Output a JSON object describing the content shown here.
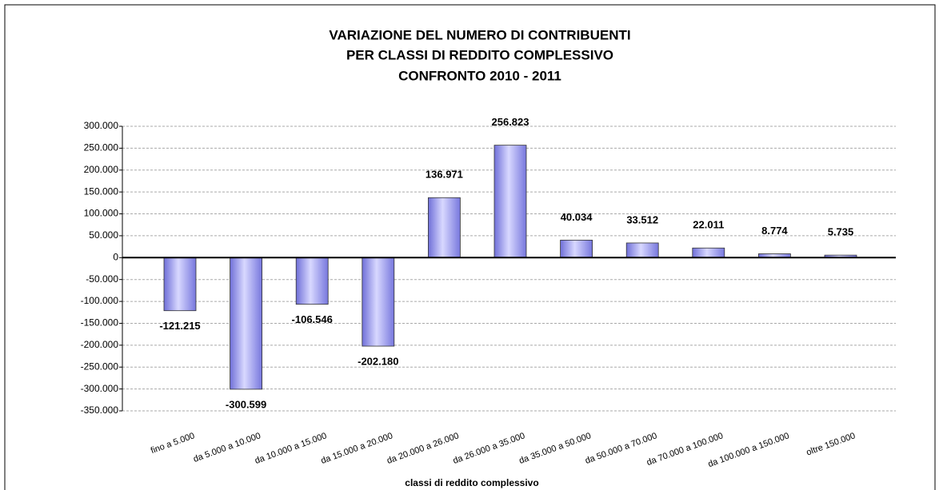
{
  "chart_data": {
    "type": "bar",
    "title": [
      "VARIAZIONE DEL NUMERO DI CONTRIBUENTI",
      "PER CLASSI DI REDDITO COMPLESSIVO",
      "CONFRONTO 2010 - 2011"
    ],
    "x_label": "classi di reddito complessivo",
    "categories": [
      "fino a 5.000",
      "da 5.000 a 10.000",
      "da 10.000 a 15.000",
      "da 15.000 a 20.000",
      "da 20.000 a 26.000",
      "da 26.000 a 35.000",
      "da 35.000 a 50.000",
      "da 50.000 a 70.000",
      "da 70.000 a 100.000",
      "da 100.000 a 150.000",
      "oltre 150.000"
    ],
    "values": [
      -121215,
      -300599,
      -106546,
      -202180,
      136971,
      256823,
      40034,
      33512,
      22011,
      8774,
      5735
    ],
    "value_labels": [
      "-121.215",
      "-300.599",
      "-106.546",
      "-202.180",
      "136.971",
      "256.823",
      "40.034",
      "33.512",
      "22.011",
      "8.774",
      "5.735"
    ],
    "color": "#9999ff",
    "ylim": [
      -350000,
      300000
    ],
    "yticks": [
      {
        "value": -350000,
        "label": "-350.000"
      },
      {
        "value": -300000,
        "label": "-300.000"
      },
      {
        "value": -250000,
        "label": "-250.000"
      },
      {
        "value": -200000,
        "label": "-200.000"
      },
      {
        "value": -150000,
        "label": "-150.000"
      },
      {
        "value": -100000,
        "label": "-100.000"
      },
      {
        "value": -50000,
        "label": "-50.000"
      },
      0,
      {
        "value": 50000,
        "label": "50.000"
      },
      {
        "value": 100000,
        "label": "100.000"
      },
      {
        "value": 150000,
        "label": "150.000"
      },
      {
        "value": 200000,
        "label": "200.000"
      },
      {
        "value": 250000,
        "label": "250.000"
      },
      {
        "value": 300000,
        "label": "300.000"
      }
    ],
    "grid": true
  }
}
